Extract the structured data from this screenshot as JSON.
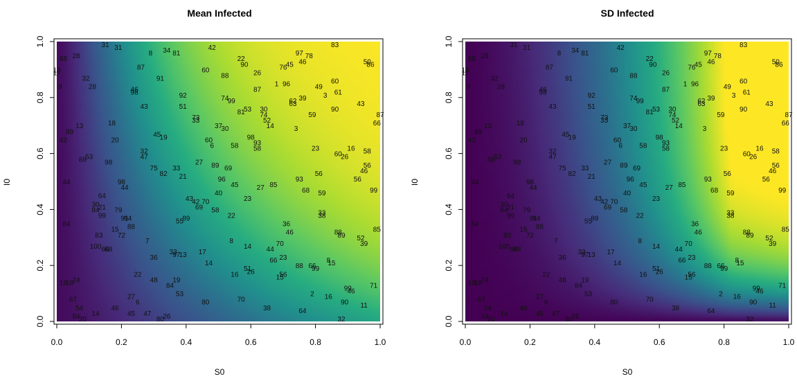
{
  "charts": [
    {
      "type": "heatmap",
      "title": "Mean Infected",
      "xlabel": "S0",
      "ylabel": "I0",
      "xlim": [
        0,
        1
      ],
      "ylim": [
        0,
        1
      ],
      "xticks": [
        "0.0",
        "0.2",
        "0.4",
        "0.6",
        "0.8",
        "1.0"
      ],
      "yticks": [
        "0.0",
        "0.2",
        "0.4",
        "0.6",
        "0.8",
        "1.0"
      ],
      "field": "mean"
    },
    {
      "type": "heatmap",
      "title": "SD Infected",
      "xlabel": "S0",
      "ylabel": "I0",
      "xlim": [
        0,
        1
      ],
      "ylim": [
        0,
        1
      ],
      "xticks": [
        "0.0",
        "0.2",
        "0.4",
        "0.6",
        "0.8",
        "1.0"
      ],
      "yticks": [
        "0.0",
        "0.2",
        "0.4",
        "0.6",
        "0.8",
        "1.0"
      ],
      "field": "sd"
    }
  ],
  "chart_data": {
    "type": "heatmap",
    "colormap": "viridis",
    "point_labels": [
      {
        "label": "31",
        "x": 0.15,
        "y": 0.99
      },
      {
        "label": "31",
        "x": 0.19,
        "y": 0.98
      },
      {
        "label": "8",
        "x": 0.29,
        "y": 0.96
      },
      {
        "label": "34",
        "x": 0.34,
        "y": 0.97
      },
      {
        "label": "81",
        "x": 0.37,
        "y": 0.96
      },
      {
        "label": "42",
        "x": 0.48,
        "y": 0.98
      },
      {
        "label": "83",
        "x": 0.86,
        "y": 0.99
      },
      {
        "label": "68",
        "x": 0.02,
        "y": 0.94
      },
      {
        "label": "28",
        "x": 0.06,
        "y": 0.95
      },
      {
        "label": "97",
        "x": 0.75,
        "y": 0.96
      },
      {
        "label": "78",
        "x": 0.78,
        "y": 0.95
      },
      {
        "label": "22",
        "x": 0.57,
        "y": 0.94
      },
      {
        "label": "50",
        "x": 0.96,
        "y": 0.93
      },
      {
        "label": "90",
        "x": 0.58,
        "y": 0.92
      },
      {
        "label": "46",
        "x": 0.76,
        "y": 0.93
      },
      {
        "label": "45",
        "x": 0.72,
        "y": 0.92
      },
      {
        "label": "76",
        "x": 0.7,
        "y": 0.91
      },
      {
        "label": "86",
        "x": 0.97,
        "y": 0.92
      },
      {
        "label": "87",
        "x": 0.26,
        "y": 0.91
      },
      {
        "label": "60",
        "x": 0.46,
        "y": 0.9
      },
      {
        "label": "10",
        "x": 0.0,
        "y": 0.9
      },
      {
        "label": "17",
        "x": 0.0,
        "y": 0.89
      },
      {
        "label": "88",
        "x": 0.52,
        "y": 0.88
      },
      {
        "label": "26",
        "x": 0.62,
        "y": 0.89
      },
      {
        "label": "32",
        "x": 0.09,
        "y": 0.87
      },
      {
        "label": "91",
        "x": 0.32,
        "y": 0.87
      },
      {
        "label": "60",
        "x": 0.86,
        "y": 0.86
      },
      {
        "label": "1",
        "x": 0.68,
        "y": 0.85
      },
      {
        "label": "96",
        "x": 0.71,
        "y": 0.85
      },
      {
        "label": "49",
        "x": 0.81,
        "y": 0.84
      },
      {
        "label": "9",
        "x": 0.01,
        "y": 0.84
      },
      {
        "label": "28",
        "x": 0.11,
        "y": 0.84
      },
      {
        "label": "46",
        "x": 0.24,
        "y": 0.83
      },
      {
        "label": "98",
        "x": 0.24,
        "y": 0.82
      },
      {
        "label": "87",
        "x": 0.62,
        "y": 0.83
      },
      {
        "label": "61",
        "x": 0.87,
        "y": 0.82
      },
      {
        "label": "92",
        "x": 0.39,
        "y": 0.81
      },
      {
        "label": "74",
        "x": 0.52,
        "y": 0.8
      },
      {
        "label": "99",
        "x": 0.54,
        "y": 0.79
      },
      {
        "label": "39",
        "x": 0.76,
        "y": 0.8
      },
      {
        "label": "3",
        "x": 0.83,
        "y": 0.81
      },
      {
        "label": "62",
        "x": 0.73,
        "y": 0.79
      },
      {
        "label": "63",
        "x": 0.73,
        "y": 0.78
      },
      {
        "label": "43",
        "x": 0.27,
        "y": 0.77
      },
      {
        "label": "51",
        "x": 0.39,
        "y": 0.77
      },
      {
        "label": "53",
        "x": 0.59,
        "y": 0.76
      },
      {
        "label": "30",
        "x": 0.64,
        "y": 0.76
      },
      {
        "label": "43",
        "x": 0.94,
        "y": 0.78
      },
      {
        "label": "81",
        "x": 0.57,
        "y": 0.75
      },
      {
        "label": "90",
        "x": 0.86,
        "y": 0.76
      },
      {
        "label": "74",
        "x": 0.64,
        "y": 0.74
      },
      {
        "label": "59",
        "x": 0.79,
        "y": 0.74
      },
      {
        "label": "87",
        "x": 1.0,
        "y": 0.74
      },
      {
        "label": "73",
        "x": 0.43,
        "y": 0.73
      },
      {
        "label": "33",
        "x": 0.43,
        "y": 0.72
      },
      {
        "label": "52",
        "x": 0.65,
        "y": 0.72
      },
      {
        "label": "66",
        "x": 0.99,
        "y": 0.71
      },
      {
        "label": "13",
        "x": 0.07,
        "y": 0.7
      },
      {
        "label": "18",
        "x": 0.17,
        "y": 0.71
      },
      {
        "label": "37",
        "x": 0.5,
        "y": 0.7
      },
      {
        "label": "14",
        "x": 0.66,
        "y": 0.7
      },
      {
        "label": "3",
        "x": 0.74,
        "y": 0.69
      },
      {
        "label": "30",
        "x": 0.52,
        "y": 0.69
      },
      {
        "label": "89",
        "x": 0.04,
        "y": 0.68
      },
      {
        "label": "45",
        "x": 0.31,
        "y": 0.67
      },
      {
        "label": "19",
        "x": 0.33,
        "y": 0.66
      },
      {
        "label": "98",
        "x": 0.6,
        "y": 0.66
      },
      {
        "label": "42",
        "x": 0.02,
        "y": 0.65
      },
      {
        "label": "20",
        "x": 0.18,
        "y": 0.65
      },
      {
        "label": "60",
        "x": 0.47,
        "y": 0.65
      },
      {
        "label": "93",
        "x": 0.62,
        "y": 0.64
      },
      {
        "label": "58",
        "x": 0.55,
        "y": 0.63
      },
      {
        "label": "6",
        "x": 0.48,
        "y": 0.63
      },
      {
        "label": "58",
        "x": 0.62,
        "y": 0.62
      },
      {
        "label": "23",
        "x": 0.8,
        "y": 0.62
      },
      {
        "label": "16",
        "x": 0.91,
        "y": 0.62
      },
      {
        "label": "58",
        "x": 0.96,
        "y": 0.61
      },
      {
        "label": "32",
        "x": 0.27,
        "y": 0.61
      },
      {
        "label": "60",
        "x": 0.87,
        "y": 0.6
      },
      {
        "label": "26",
        "x": 0.89,
        "y": 0.59
      },
      {
        "label": "53",
        "x": 0.1,
        "y": 0.59
      },
      {
        "label": "88",
        "x": 0.08,
        "y": 0.58
      },
      {
        "label": "47",
        "x": 0.27,
        "y": 0.59
      },
      {
        "label": "98",
        "x": 0.16,
        "y": 0.57
      },
      {
        "label": "27",
        "x": 0.44,
        "y": 0.57
      },
      {
        "label": "89",
        "x": 0.49,
        "y": 0.56
      },
      {
        "label": "56",
        "x": 0.96,
        "y": 0.56
      },
      {
        "label": "75",
        "x": 0.3,
        "y": 0.55
      },
      {
        "label": "33",
        "x": 0.37,
        "y": 0.55
      },
      {
        "label": "69",
        "x": 0.53,
        "y": 0.55
      },
      {
        "label": "82",
        "x": 0.33,
        "y": 0.53
      },
      {
        "label": "21",
        "x": 0.39,
        "y": 0.52
      },
      {
        "label": "46",
        "x": 0.95,
        "y": 0.54
      },
      {
        "label": "56",
        "x": 0.81,
        "y": 0.53
      },
      {
        "label": "96",
        "x": 0.51,
        "y": 0.51
      },
      {
        "label": "93",
        "x": 0.75,
        "y": 0.51
      },
      {
        "label": "56",
        "x": 0.93,
        "y": 0.51
      },
      {
        "label": "44",
        "x": 0.03,
        "y": 0.5
      },
      {
        "label": "98",
        "x": 0.2,
        "y": 0.5
      },
      {
        "label": "44",
        "x": 0.21,
        "y": 0.48
      },
      {
        "label": "45",
        "x": 0.55,
        "y": 0.49
      },
      {
        "label": "27",
        "x": 0.63,
        "y": 0.48
      },
      {
        "label": "85",
        "x": 0.67,
        "y": 0.49
      },
      {
        "label": "40",
        "x": 0.5,
        "y": 0.46
      },
      {
        "label": "68",
        "x": 0.77,
        "y": 0.47
      },
      {
        "label": "59",
        "x": 0.82,
        "y": 0.46
      },
      {
        "label": "99",
        "x": 0.98,
        "y": 0.47
      },
      {
        "label": "64",
        "x": 0.14,
        "y": 0.45
      },
      {
        "label": "43",
        "x": 0.41,
        "y": 0.44
      },
      {
        "label": "42",
        "x": 0.43,
        "y": 0.43
      },
      {
        "label": "70",
        "x": 0.46,
        "y": 0.43
      },
      {
        "label": "23",
        "x": 0.59,
        "y": 0.44
      },
      {
        "label": "30",
        "x": 0.12,
        "y": 0.42
      },
      {
        "label": "21",
        "x": 0.14,
        "y": 0.41
      },
      {
        "label": "79",
        "x": 0.19,
        "y": 0.4
      },
      {
        "label": "69",
        "x": 0.44,
        "y": 0.41
      },
      {
        "label": "58",
        "x": 0.49,
        "y": 0.4
      },
      {
        "label": "84",
        "x": 0.12,
        "y": 0.4
      },
      {
        "label": "99",
        "x": 0.14,
        "y": 0.38
      },
      {
        "label": "91",
        "x": 0.21,
        "y": 0.37
      },
      {
        "label": "94",
        "x": 0.22,
        "y": 0.37
      },
      {
        "label": "33",
        "x": 0.82,
        "y": 0.39
      },
      {
        "label": "38",
        "x": 0.82,
        "y": 0.38
      },
      {
        "label": "22",
        "x": 0.54,
        "y": 0.38
      },
      {
        "label": "89",
        "x": 0.4,
        "y": 0.37
      },
      {
        "label": "55",
        "x": 0.38,
        "y": 0.36
      },
      {
        "label": "84",
        "x": 0.03,
        "y": 0.35
      },
      {
        "label": "88",
        "x": 0.23,
        "y": 0.34
      },
      {
        "label": "36",
        "x": 0.71,
        "y": 0.35
      },
      {
        "label": "85",
        "x": 0.99,
        "y": 0.33
      },
      {
        "label": "15",
        "x": 0.18,
        "y": 0.33
      },
      {
        "label": "72",
        "x": 0.2,
        "y": 0.31
      },
      {
        "label": "46",
        "x": 0.72,
        "y": 0.32
      },
      {
        "label": "83",
        "x": 0.13,
        "y": 0.31
      },
      {
        "label": "88",
        "x": 0.87,
        "y": 0.32
      },
      {
        "label": "89",
        "x": 0.88,
        "y": 0.31
      },
      {
        "label": "52",
        "x": 0.94,
        "y": 0.3
      },
      {
        "label": "8",
        "x": 0.54,
        "y": 0.29
      },
      {
        "label": "7",
        "x": 0.28,
        "y": 0.29
      },
      {
        "label": "39",
        "x": 0.95,
        "y": 0.28
      },
      {
        "label": "70",
        "x": 0.69,
        "y": 0.28
      },
      {
        "label": "14",
        "x": 0.59,
        "y": 0.27
      },
      {
        "label": "100",
        "x": 0.12,
        "y": 0.27
      },
      {
        "label": "66",
        "x": 0.15,
        "y": 0.26
      },
      {
        "label": "68",
        "x": 0.16,
        "y": 0.26
      },
      {
        "label": "44",
        "x": 0.66,
        "y": 0.26
      },
      {
        "label": "33",
        "x": 0.36,
        "y": 0.25
      },
      {
        "label": "97",
        "x": 0.37,
        "y": 0.24
      },
      {
        "label": "13",
        "x": 0.39,
        "y": 0.24
      },
      {
        "label": "17",
        "x": 0.45,
        "y": 0.25
      },
      {
        "label": "36",
        "x": 0.3,
        "y": 0.23
      },
      {
        "label": "23",
        "x": 0.7,
        "y": 0.23
      },
      {
        "label": "66",
        "x": 0.67,
        "y": 0.22
      },
      {
        "label": "8",
        "x": 0.84,
        "y": 0.22
      },
      {
        "label": "15",
        "x": 0.85,
        "y": 0.21
      },
      {
        "label": "14",
        "x": 0.47,
        "y": 0.21
      },
      {
        "label": "88",
        "x": 0.75,
        "y": 0.2
      },
      {
        "label": "66",
        "x": 0.79,
        "y": 0.2
      },
      {
        "label": "99",
        "x": 0.8,
        "y": 0.19
      },
      {
        "label": "51",
        "x": 0.59,
        "y": 0.19
      },
      {
        "label": "26",
        "x": 0.6,
        "y": 0.18
      },
      {
        "label": "16",
        "x": 0.55,
        "y": 0.17
      },
      {
        "label": "56",
        "x": 0.7,
        "y": 0.17
      },
      {
        "label": "15",
        "x": 0.69,
        "y": 0.16
      },
      {
        "label": "22",
        "x": 0.25,
        "y": 0.17
      },
      {
        "label": "19",
        "x": 0.37,
        "y": 0.15
      },
      {
        "label": "48",
        "x": 0.3,
        "y": 0.15
      },
      {
        "label": "84",
        "x": 0.35,
        "y": 0.13
      },
      {
        "label": "18",
        "x": 0.02,
        "y": 0.14
      },
      {
        "label": "16",
        "x": 0.04,
        "y": 0.14
      },
      {
        "label": "24",
        "x": 0.06,
        "y": 0.15
      },
      {
        "label": "99",
        "x": 0.9,
        "y": 0.12
      },
      {
        "label": "46",
        "x": 0.91,
        "y": 0.11
      },
      {
        "label": "71",
        "x": 0.98,
        "y": 0.13
      },
      {
        "label": "53",
        "x": 0.38,
        "y": 0.1
      },
      {
        "label": "2",
        "x": 0.79,
        "y": 0.1
      },
      {
        "label": "16",
        "x": 0.84,
        "y": 0.09
      },
      {
        "label": "67",
        "x": 0.05,
        "y": 0.08
      },
      {
        "label": "27",
        "x": 0.23,
        "y": 0.09
      },
      {
        "label": "70",
        "x": 0.57,
        "y": 0.08
      },
      {
        "label": "80",
        "x": 0.46,
        "y": 0.07
      },
      {
        "label": "6",
        "x": 0.25,
        "y": 0.07
      },
      {
        "label": "90",
        "x": 0.89,
        "y": 0.07
      },
      {
        "label": "11",
        "x": 0.95,
        "y": 0.06
      },
      {
        "label": "54",
        "x": 0.07,
        "y": 0.05
      },
      {
        "label": "46",
        "x": 0.18,
        "y": 0.05
      },
      {
        "label": "14",
        "x": 0.12,
        "y": 0.03
      },
      {
        "label": "45",
        "x": 0.23,
        "y": 0.03
      },
      {
        "label": "38",
        "x": 0.65,
        "y": 0.05
      },
      {
        "label": "64",
        "x": 0.76,
        "y": 0.04
      },
      {
        "label": "84",
        "x": 0.06,
        "y": 0.02
      },
      {
        "label": "20",
        "x": 0.08,
        "y": 0.01
      },
      {
        "label": "47",
        "x": 0.28,
        "y": 0.03
      },
      {
        "label": "26",
        "x": 0.34,
        "y": 0.02
      },
      {
        "label": "80",
        "x": 0.32,
        "y": 0.01
      },
      {
        "label": "32",
        "x": 0.88,
        "y": 0.01
      }
    ]
  }
}
